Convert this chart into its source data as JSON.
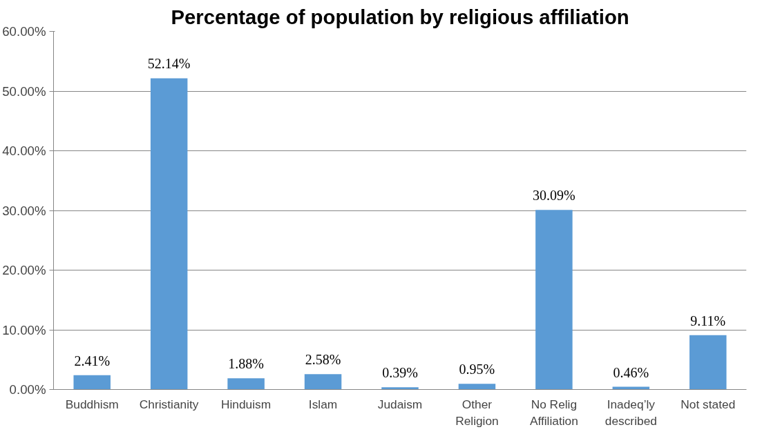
{
  "chart_data": {
    "type": "bar",
    "title": "Percentage of population by religious affiliation",
    "categories": [
      "Buddhism",
      "Christianity",
      "Hinduism",
      "Islam",
      "Judaism",
      "Other\nReligion",
      "No Relig\nAffiliation",
      "Inadeq’ly\ndescribed",
      "Not stated"
    ],
    "values": [
      2.41,
      52.14,
      1.88,
      2.58,
      0.39,
      0.95,
      30.09,
      0.46,
      9.11
    ],
    "value_labels": [
      "2.41%",
      "52.14%",
      "1.88%",
      "2.58%",
      "0.39%",
      "0.95%",
      "30.09%",
      "0.46%",
      "9.11%"
    ],
    "color": "#5b9bd5",
    "ylim": [
      0,
      60
    ],
    "yticks": [
      {
        "value": 0,
        "label": "0.00%"
      },
      {
        "value": 10,
        "label": "10.00%"
      },
      {
        "value": 20,
        "label": "20.00%"
      },
      {
        "value": 30,
        "label": "30.00%"
      },
      {
        "value": 40,
        "label": "40.00%"
      },
      {
        "value": 50,
        "label": "50.00%"
      },
      {
        "value": 60,
        "label": "60.00%"
      }
    ],
    "grid": "y"
  }
}
